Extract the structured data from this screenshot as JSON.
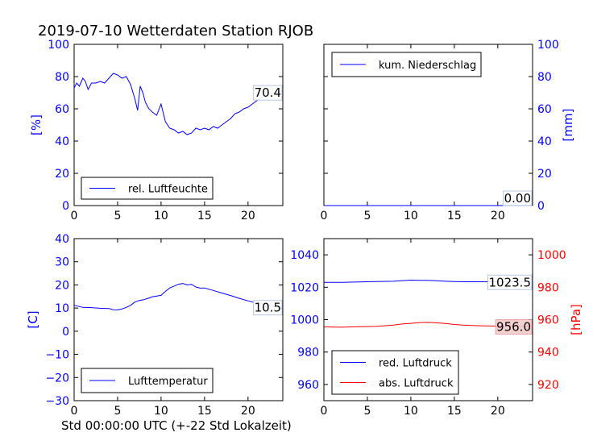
{
  "figure": {
    "title": "2019-07-10 Wetterdaten Station RJOB",
    "xlabel": "Std 00:00:00 UTC (+-22 Std Lokalzeit)"
  },
  "colors": {
    "blue": "#0000ff",
    "red": "#ff0000",
    "axis": "#000000",
    "background": "#ffffff"
  },
  "chart_data": [
    {
      "type": "line",
      "panel": "top-left",
      "ylabel": "[%]",
      "xlim": [
        0,
        24
      ],
      "ylim": [
        0,
        100
      ],
      "xticks": [
        0,
        5,
        10,
        15,
        20
      ],
      "yticks": [
        0,
        20,
        40,
        60,
        80,
        100
      ],
      "ytick_color": "blue",
      "legend_position": "lower-center",
      "series": [
        {
          "name": "rel. Luftfeuchte",
          "color": "blue",
          "last_value_label": "70.4",
          "x": [
            0,
            0.3,
            0.6,
            1.0,
            1.3,
            1.6,
            2.0,
            2.5,
            3.0,
            3.5,
            4.0,
            4.5,
            5.0,
            5.5,
            6.0,
            6.5,
            7.0,
            7.3,
            7.6,
            7.9,
            8.2,
            8.6,
            9.0,
            9.5,
            10.0,
            10.5,
            11.0,
            11.5,
            12.0,
            12.5,
            13.0,
            13.5,
            14.0,
            14.5,
            15.0,
            15.5,
            16.0,
            16.5,
            17.0,
            17.5,
            18.0,
            18.5,
            19.0,
            19.5,
            20.0,
            20.5,
            21.0,
            21.5,
            22.0,
            22.5,
            23.0,
            23.5,
            24.0
          ],
          "y": [
            73,
            76,
            74,
            79,
            77,
            72,
            76,
            76,
            77,
            76,
            79,
            82,
            81,
            79,
            80,
            75,
            66,
            59,
            74,
            70,
            64,
            60,
            58,
            56,
            63,
            52,
            48,
            47,
            45,
            46,
            44,
            45,
            48,
            47,
            48,
            47,
            49,
            48,
            50,
            52,
            54,
            57,
            58,
            60,
            61,
            63,
            65,
            67,
            68,
            69,
            70,
            70.5,
            70.4
          ]
        }
      ]
    },
    {
      "type": "line",
      "panel": "top-right",
      "ylabel": "[mm]",
      "xlim": [
        0,
        24
      ],
      "ylim": [
        0,
        100
      ],
      "xticks": [
        0,
        5,
        10,
        15,
        20
      ],
      "yticks": [
        0,
        20,
        40,
        60,
        80,
        100
      ],
      "ytick_color": "blue",
      "yaxis_side": "right",
      "legend_position": "upper-left",
      "series": [
        {
          "name": "kum. Niederschlag",
          "color": "blue",
          "last_value_label": "0.00",
          "x": [
            0,
            24
          ],
          "y": [
            0,
            0
          ]
        }
      ]
    },
    {
      "type": "line",
      "panel": "bottom-left",
      "ylabel": "[C]",
      "xlim": [
        0,
        24
      ],
      "ylim": [
        -30,
        40
      ],
      "xticks": [
        0,
        5,
        10,
        15,
        20
      ],
      "yticks": [
        -30,
        -20,
        -10,
        0,
        10,
        20,
        30,
        40
      ],
      "ytick_color": "blue",
      "legend_position": "lower-center",
      "series": [
        {
          "name": "Lufttemperatur",
          "color": "blue",
          "last_value_label": "10.5",
          "x": [
            0,
            1,
            2,
            3,
            4,
            4.5,
            5,
            5.5,
            6,
            6.5,
            7,
            7.5,
            8,
            8.5,
            9,
            9.5,
            10,
            10.5,
            11,
            11.5,
            12,
            12.5,
            13,
            13.5,
            14,
            14.5,
            15,
            16,
            17,
            18,
            19,
            20,
            21,
            22,
            23,
            24
          ],
          "y": [
            11.2,
            10.3,
            10.2,
            9.9,
            9.8,
            9.3,
            9.2,
            9.6,
            10.3,
            11.2,
            12.6,
            13.3,
            13.6,
            14.2,
            14.9,
            15.2,
            15.5,
            17.2,
            18.7,
            19.5,
            20.3,
            20.6,
            20.0,
            20.3,
            19.1,
            18.6,
            18.7,
            17.6,
            16.5,
            15.4,
            14.2,
            13.1,
            12.2,
            11.5,
            10.9,
            10.5
          ]
        }
      ]
    },
    {
      "type": "line",
      "panel": "bottom-right",
      "xlim": [
        0,
        24
      ],
      "xticks": [
        0,
        5,
        10,
        15,
        20
      ],
      "legend_position": "lower-left",
      "left_axis": {
        "ylim": [
          950,
          1050
        ],
        "yticks": [
          960,
          980,
          1000,
          1020,
          1040
        ],
        "tick_color": "blue",
        "ylabel": ""
      },
      "right_axis": {
        "ylim": [
          910,
          1010
        ],
        "yticks": [
          920,
          940,
          960,
          980,
          1000
        ],
        "tick_color": "red",
        "ylabel": "[hPa]"
      },
      "series": [
        {
          "name": "red. Luftdruck",
          "color": "blue",
          "axis": "left",
          "last_value_label": "1023.5",
          "x": [
            0,
            2,
            4,
            6,
            8,
            9,
            10,
            11,
            12,
            13,
            14,
            15,
            16,
            18,
            20,
            22,
            24
          ],
          "y": [
            1023.0,
            1023.0,
            1023.3,
            1023.5,
            1023.7,
            1024.1,
            1024.4,
            1024.3,
            1024.3,
            1024.0,
            1023.7,
            1023.5,
            1023.4,
            1023.4,
            1023.4,
            1023.5,
            1023.5
          ]
        },
        {
          "name": "abs. Luftdruck",
          "color": "red",
          "axis": "right",
          "last_value_label": "956.0",
          "x": [
            0,
            2,
            4,
            6,
            8,
            9,
            10,
            11,
            12,
            13,
            14,
            15,
            16,
            18,
            20,
            22,
            24
          ],
          "y": [
            955.5,
            955.3,
            955.6,
            955.8,
            956.6,
            957.3,
            957.7,
            958.2,
            958.3,
            958.0,
            957.6,
            957.0,
            956.6,
            956.2,
            956.0,
            956.0,
            956.0
          ]
        }
      ]
    }
  ]
}
